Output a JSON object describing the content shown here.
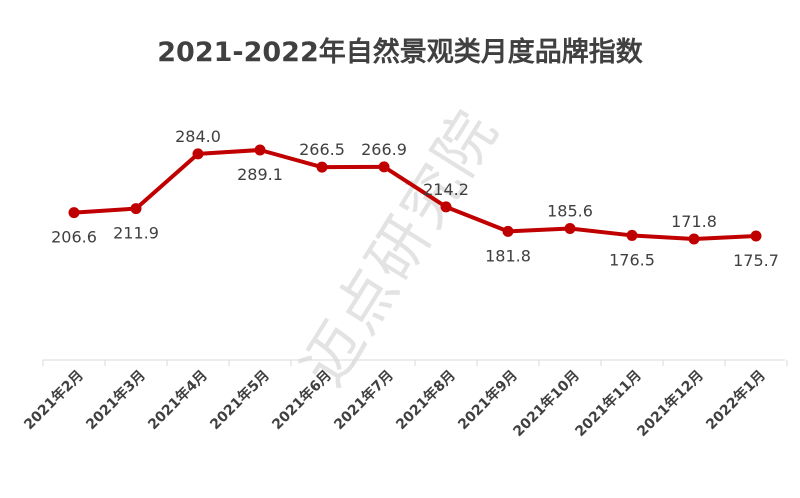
{
  "title": "2021-2022年自然景观类月度品牌指数",
  "watermark": "迈点研究院",
  "chart_data": {
    "type": "line",
    "title": "2021-2022年自然景观类月度品牌指数",
    "categories": [
      "2021年2月",
      "2021年3月",
      "2021年4月",
      "2021年5月",
      "2021年6月",
      "2021年7月",
      "2021年8月",
      "2021年9月",
      "2021年10月",
      "2021年11月",
      "2021年12月",
      "2022年1月"
    ],
    "values": [
      206.6,
      211.9,
      284.0,
      289.1,
      266.5,
      266.9,
      214.2,
      181.8,
      185.6,
      176.5,
      171.8,
      175.7
    ],
    "labels": [
      "206.6",
      "211.9",
      "284.0",
      "289.1",
      "266.5",
      "266.9",
      "214.2",
      "181.8",
      "185.6",
      "176.5",
      "171.8",
      "175.7"
    ],
    "label_positions": [
      "below",
      "below",
      "above",
      "below",
      "above",
      "above",
      "above",
      "below",
      "above",
      "below",
      "above",
      "below"
    ],
    "xlabel": "",
    "ylabel": "",
    "ylim": [
      100,
      300
    ],
    "grid": false,
    "legend": "none",
    "color": "#c00000"
  }
}
